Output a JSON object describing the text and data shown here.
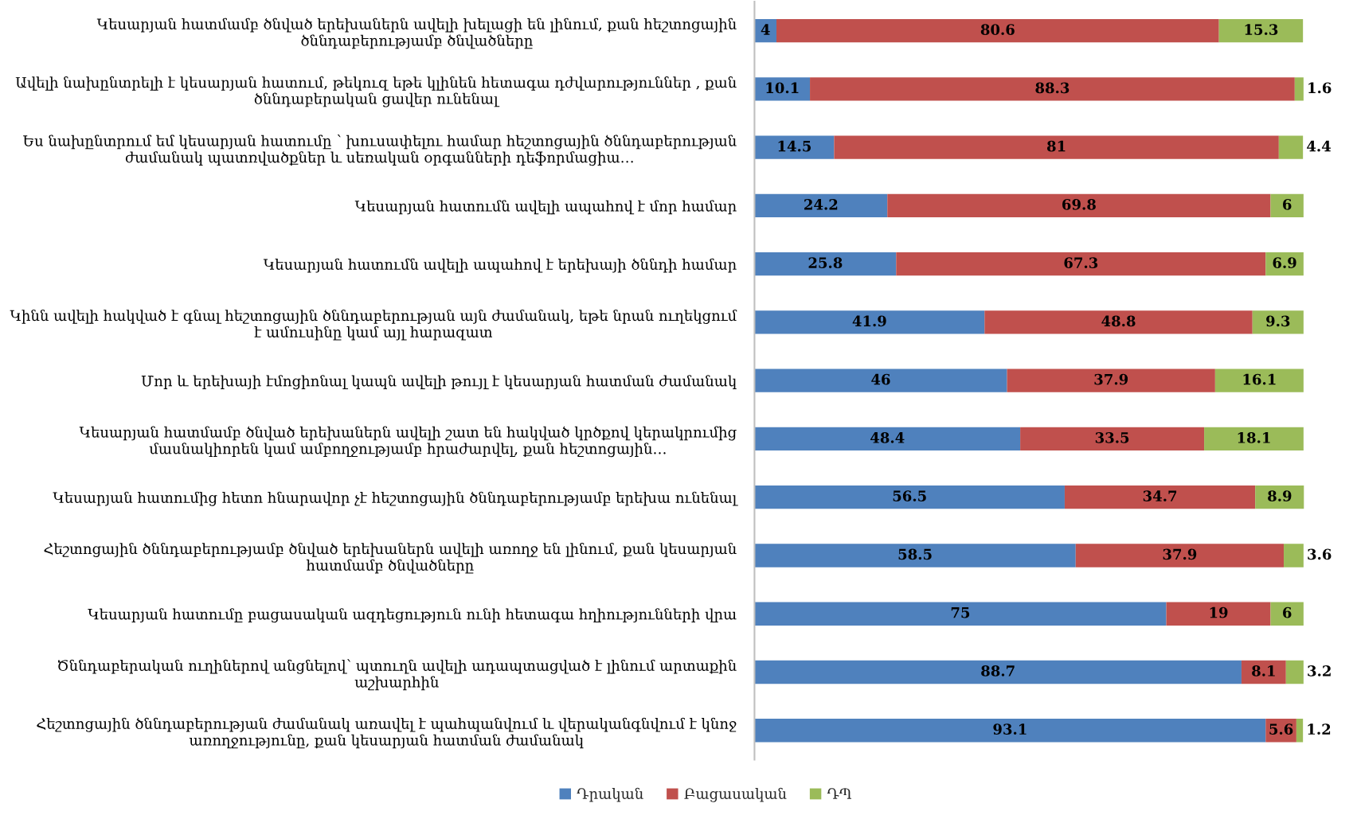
{
  "chart_data": {
    "type": "bar",
    "orientation": "horizontal",
    "stacked": true,
    "categories": [
      "Կեսարյան հատմամբ ծնված երեխաներն ավելի խելացի են լինում, քան հեշտոցային ծննդաբերությամբ ծնվածները",
      "Ավելի նախընտրելի է կեսարյան հատում, թեկուզ եթե կլինեն հետագա դժվարություններ , քան ծննդաբերական ցավեր ունենալ",
      "Ես նախընտրում եմ կեսարյան հատումը ՝ խուսափելու համար հեշտոցային ծննդաբերության ժամանակ պատռվածքներ և սեռական օրգանների դեֆորմացիա…",
      "Կեսարյան հատումն ավելի ապահով է մոր համար",
      "Կեսարյան հատումն ավելի ապահով է երեխայի ծննդի համար",
      "Կինն ավելի հակված է գնալ հեշտոցային ծննդաբերության այն ժամանակ, եթե նրան ուղեկցում է ամուսինը կամ այլ հարազատ",
      "Մոր և երեխայի էմոցիոնալ կապն ավելի թույլ է կեսարյան հատման ժամանակ",
      "Կեսարյան հատմամբ ծնված երեխաներն ավելի շատ են հակված կրծքով կերակրումից մասնակիորեն կամ ամբողջությամբ հրաժարվել, քան հեշտոցային…",
      "Կեսարյան հատումից հետո հնարավոր չէ հեշտոցային ծննդաբերությամբ երեխա ունենալ",
      "Հեշտոցային ծննդաբերությամբ ծնված երեխաներն ավելի առողջ են լինում, քան կեսարյան հատմամբ ծնվածները",
      "Կեսարյան հատումը բացասական ազդեցություն ունի հետագա հղիությունների վրա",
      "Ծննդաբերական ուղիներով անցնելով՝ պտուղն ավելի ադապտացված է լինում արտաքին աշխարհին",
      "Հեշտոցային ծննդաբերության ժամանակ առավել է պահպանվում և վերականգնվում է կնոջ առողջությունը, քան կեսարյան հատման ժամանակ"
    ],
    "series": [
      {
        "name": "Դրական",
        "color": "#4f81bd",
        "values": [
          4,
          10.1,
          14.5,
          24.2,
          25.8,
          41.9,
          46,
          48.4,
          56.5,
          58.5,
          75,
          88.7,
          93.1
        ]
      },
      {
        "name": "Բացասական",
        "color": "#c0504d",
        "values": [
          80.6,
          88.3,
          81,
          69.8,
          67.3,
          48.8,
          37.9,
          33.5,
          34.7,
          37.9,
          19,
          8.1,
          5.6
        ]
      },
      {
        "name": "ԴՊ",
        "color": "#9bbb59",
        "values": [
          15.3,
          1.6,
          4.4,
          6,
          6.9,
          9.3,
          16.1,
          18.1,
          8.9,
          3.6,
          6,
          3.2,
          1.2
        ]
      }
    ],
    "data_labels": true,
    "legend": "bottom",
    "tick_labels": "y"
  }
}
